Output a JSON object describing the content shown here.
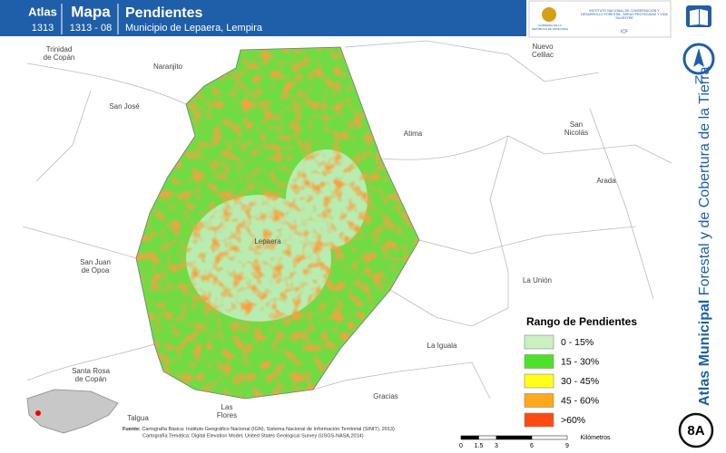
{
  "header": {
    "atlas_label": "Atlas",
    "atlas_number": "1313",
    "map_label": "Mapa",
    "map_number": "1313 - 08",
    "title": "Pendientes",
    "subtitle": "Municipio de Lepaera, Lempira"
  },
  "logos": {
    "government": "GOBIERNO DE LA REPÚBLICA DE HONDURAS",
    "institute": "INSTITUTO NACIONAL DE CONSERVACIÓN Y DESARROLLO FORESTAL, ÁREAS PROTEGIDAS Y VIDA SILVESTRE",
    "acronym": "ICF"
  },
  "places": [
    [
      "Trinidad",
      "de Copán"
    ],
    [
      "Naranjito"
    ],
    [
      "San José"
    ],
    [
      "Nuevo",
      "Celilac"
    ],
    [
      "San",
      "Nicolás"
    ],
    [
      "Atima"
    ],
    [
      "Arada"
    ],
    [
      "Lepaera"
    ],
    [
      "San Juan",
      "de Opoa"
    ],
    [
      "La Unión"
    ],
    [
      "La Iguala"
    ],
    [
      "Santa Rosa",
      "de Copán"
    ],
    [
      "Gracias"
    ],
    [
      "Las",
      "Flores"
    ],
    [
      "Talgua"
    ]
  ],
  "legend": {
    "title": "Rango de Pendientes",
    "items": [
      {
        "label": "0 - 15%",
        "color": "#c9f2c0"
      },
      {
        "label": "15 - 30%",
        "color": "#4fe02a"
      },
      {
        "label": "30 - 45%",
        "color": "#ffff1a"
      },
      {
        "label": "45 - 60%",
        "color": "#ffa81a"
      },
      {
        "label": ">60%",
        "color": "#ff4a10"
      }
    ]
  },
  "side_title": {
    "bold": "Atlas Municipal",
    "regular": "Forestal y de Cobertura de la Tierra"
  },
  "north": "N",
  "badge": "8A",
  "sources": {
    "label": "Fuente:",
    "line1": "Cartografía Básica: Instituto Geográfico Nacional (IGN), Sistema Nacional de Información Territorial (SINIT), 2013)",
    "line2": "Cartografía Temática: Digital Elevation Model, United States Geological Survey (USGS-NASA,2014)"
  },
  "scale": {
    "ticks": [
      0,
      1.5,
      3,
      6,
      9
    ],
    "unit": "Kilómetros"
  }
}
